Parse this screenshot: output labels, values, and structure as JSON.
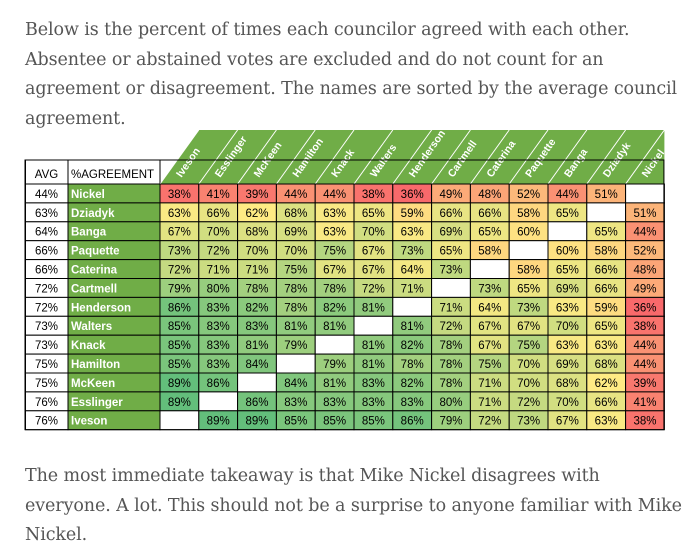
{
  "intro_text": "Below is the percent of times each councilor agreed with each other. Absentee or abstained votes are excluded and do not count for an agreement or disagreement. The names are sorted by the average council agreement.",
  "outro_text": "The most immediate takeaway is that Mike Nickel disagrees with everyone. A lot. This should not be a surprise to anyone familiar with Mike Nickel.",
  "chart_data": {
    "type": "heatmap",
    "corner_labels": {
      "avg": "AVG",
      "name": "%AGREEMENT"
    },
    "columns": [
      "Iveson",
      "Esslinger",
      "McKeen",
      "Hamilton",
      "Knack",
      "Walters",
      "Henderson",
      "Cartmell",
      "Caterina",
      "Paquette",
      "Banga",
      "Dziadyk",
      "Nickel"
    ],
    "rows": [
      {
        "avg": "44%",
        "name": "Nickel",
        "values": [
          38,
          41,
          39,
          44,
          44,
          38,
          36,
          49,
          48,
          52,
          44,
          51,
          null
        ]
      },
      {
        "avg": "63%",
        "name": "Dziadyk",
        "values": [
          63,
          66,
          62,
          68,
          63,
          65,
          59,
          66,
          66,
          58,
          65,
          null,
          51
        ]
      },
      {
        "avg": "64%",
        "name": "Banga",
        "values": [
          67,
          70,
          68,
          69,
          63,
          70,
          63,
          69,
          65,
          60,
          null,
          65,
          44
        ]
      },
      {
        "avg": "66%",
        "name": "Paquette",
        "values": [
          73,
          72,
          70,
          70,
          75,
          67,
          73,
          65,
          58,
          null,
          60,
          58,
          52
        ]
      },
      {
        "avg": "66%",
        "name": "Caterina",
        "values": [
          72,
          71,
          71,
          75,
          67,
          67,
          64,
          73,
          null,
          58,
          65,
          66,
          48
        ]
      },
      {
        "avg": "72%",
        "name": "Cartmell",
        "values": [
          79,
          80,
          78,
          78,
          78,
          72,
          71,
          null,
          73,
          65,
          69,
          66,
          49
        ]
      },
      {
        "avg": "72%",
        "name": "Henderson",
        "values": [
          86,
          83,
          82,
          78,
          82,
          81,
          null,
          71,
          64,
          73,
          63,
          59,
          36
        ]
      },
      {
        "avg": "73%",
        "name": "Walters",
        "values": [
          85,
          83,
          83,
          81,
          81,
          null,
          81,
          72,
          67,
          67,
          70,
          65,
          38
        ]
      },
      {
        "avg": "73%",
        "name": "Knack",
        "values": [
          85,
          83,
          81,
          79,
          null,
          81,
          82,
          78,
          67,
          75,
          63,
          63,
          44
        ]
      },
      {
        "avg": "75%",
        "name": "Hamilton",
        "values": [
          85,
          83,
          84,
          null,
          79,
          81,
          78,
          78,
          75,
          70,
          69,
          68,
          44
        ]
      },
      {
        "avg": "75%",
        "name": "McKeen",
        "values": [
          89,
          86,
          null,
          84,
          81,
          83,
          82,
          78,
          71,
          70,
          68,
          62,
          39
        ]
      },
      {
        "avg": "76%",
        "name": "Esslinger",
        "values": [
          89,
          null,
          86,
          83,
          83,
          83,
          83,
          80,
          71,
          72,
          70,
          66,
          41
        ]
      },
      {
        "avg": "76%",
        "name": "Iveson",
        "values": [
          null,
          89,
          89,
          85,
          85,
          85,
          86,
          79,
          72,
          73,
          67,
          63,
          38
        ]
      }
    ],
    "value_suffix": "%",
    "color_scale": {
      "low": "#f8696b",
      "mid": "#ffeb84",
      "high": "#63be7b",
      "domain": [
        36,
        62,
        89
      ]
    },
    "name_cell_color": "#70ad47",
    "name_text_color": "#ffffff",
    "grid": true,
    "legend": "none"
  }
}
